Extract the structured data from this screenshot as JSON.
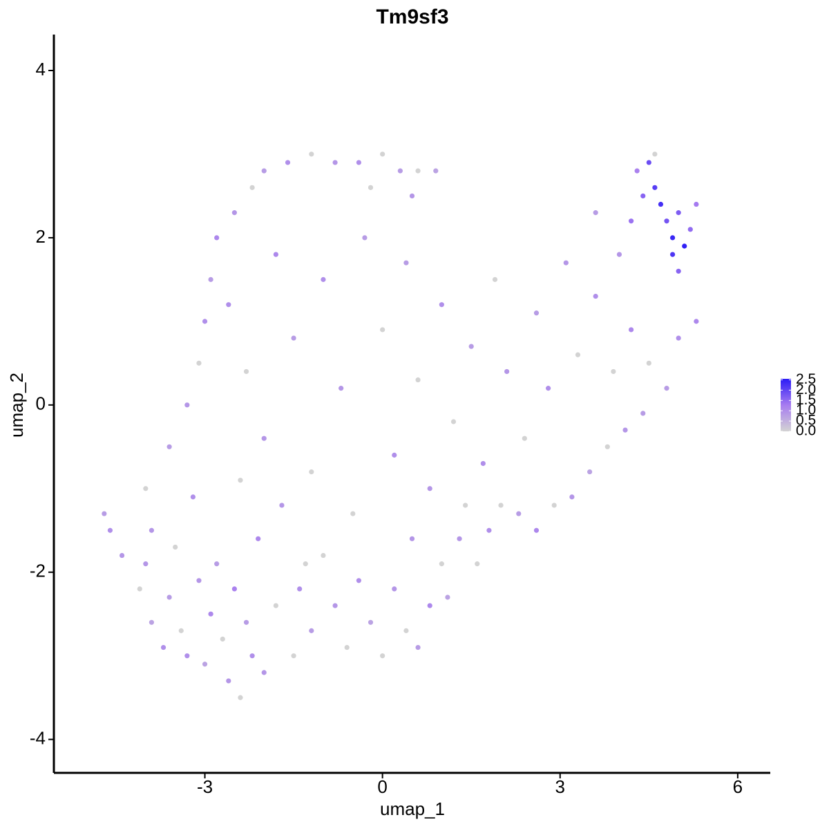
{
  "chart_data": {
    "type": "scatter",
    "title": "Tm9sf3",
    "x_label": "umap_1",
    "y_label": "umap_2",
    "x": [
      -4.7,
      -4.6,
      -4.4,
      -4.1,
      -4.0,
      -3.9,
      -3.7,
      -3.6,
      -3.4,
      -3.3,
      -3.1,
      -3.0,
      -2.9,
      -2.7,
      -2.6,
      -2.5,
      -2.4,
      -2.3,
      -2.2,
      -2.0,
      -1.8,
      -1.5,
      -1.4,
      -1.2,
      -1.0,
      -0.8,
      -0.6,
      -0.4,
      -0.2,
      0,
      0.2,
      0.4,
      0.6,
      0.8,
      1.0,
      1.1,
      1.3,
      1.6,
      1.8,
      2.0,
      2.3,
      2.6,
      2.9,
      3.2,
      3.5,
      3.8,
      4.1,
      4.4,
      -4.0,
      -3.6,
      -3.3,
      -3.1,
      -3.0,
      -2.9,
      -2.8,
      -2.5,
      -2.2,
      -2.0,
      -1.6,
      -1.2,
      -0.8,
      -0.4,
      0,
      0.3,
      0.6,
      0.9,
      0.5,
      -0.2,
      -2.6,
      -2.3,
      -2.0,
      -1.8,
      -1.5,
      -1.2,
      -1.0,
      -0.7,
      -0.5,
      -0.3,
      0,
      0.2,
      0.4,
      0.6,
      0.8,
      1.0,
      1.2,
      1.5,
      1.7,
      1.9,
      2.1,
      2.4,
      2.6,
      2.8,
      3.1,
      3.3,
      3.6,
      3.6,
      3.9,
      4.0,
      4.2,
      4.5,
      4.8,
      5.0,
      5.3,
      -3.9,
      -3.5,
      -3.2,
      -2.8,
      -2.4,
      -2.1,
      -1.7,
      -1.3,
      0.5,
      1.4,
      4.4,
      4.5,
      4.6,
      4.7,
      4.8,
      4.9,
      5.0,
      5.1,
      5.2,
      4.9,
      5.0,
      5.3,
      4.3,
      4.6,
      4.2
    ],
    "values": [
      -1.3,
      -1.5,
      -1.8,
      -2.2,
      -1.9,
      -2.6,
      -2.9,
      -2.3,
      -2.7,
      -3.0,
      -2.1,
      -3.1,
      -2.5,
      -2.8,
      -3.3,
      -2.2,
      -3.5,
      -2.6,
      -3.0,
      -3.2,
      -2.4,
      -3.0,
      -2.2,
      -2.7,
      -1.8,
      -2.4,
      -2.9,
      -2.1,
      -2.6,
      -3.0,
      -2.2,
      -2.7,
      -2.9,
      -2.4,
      -1.9,
      -2.3,
      -1.6,
      -1.9,
      -1.5,
      -1.2,
      -1.3,
      -1.5,
      -1.2,
      -1.1,
      -0.8,
      -0.5,
      -0.3,
      -0.1,
      -1.0,
      -0.5,
      0,
      0.5,
      1.0,
      1.5,
      2.0,
      2.3,
      2.6,
      2.8,
      2.9,
      3.0,
      2.9,
      2.9,
      3.0,
      2.8,
      2.8,
      2.8,
      2.5,
      2.6,
      1.2,
      0.4,
      -0.4,
      1.8,
      0.8,
      -0.8,
      1.5,
      0.2,
      -1.3,
      2.0,
      0.9,
      -0.6,
      1.7,
      0.3,
      -1.0,
      1.2,
      -0.2,
      0.7,
      -0.7,
      1.5,
      0.4,
      -0.4,
      1.1,
      0.2,
      1.7,
      0.6,
      1.3,
      2.3,
      0.4,
      1.8,
      0.9,
      0.5,
      0.2,
      0.8,
      1.0,
      -1.5,
      -1.7,
      -1.1,
      -1.9,
      -0.9,
      -1.6,
      -1.2,
      -1.9,
      -1.6,
      -1.2,
      2.5,
      2.9,
      2.6,
      2.4,
      2.2,
      2.0,
      2.3,
      1.9,
      2.1,
      1.8,
      1.6,
      2.4,
      2.8,
      3.0,
      2.2
    ],
    "expression": [
      0.8,
      1.0,
      0.9,
      0,
      0.9,
      0.7,
      1.0,
      0.8,
      0,
      1.0,
      0.9,
      0.7,
      1.1,
      0,
      0.9,
      1.2,
      0,
      0.8,
      1.0,
      0.9,
      0,
      0,
      1.0,
      0.8,
      0,
      0.9,
      0,
      1.0,
      0.7,
      0,
      0.9,
      0,
      0.8,
      1.1,
      0,
      0.7,
      0.9,
      0,
      1.0,
      0,
      0.8,
      1.1,
      0,
      0.9,
      0.7,
      0,
      0.9,
      0.8,
      0,
      0.8,
      0.9,
      0,
      1.0,
      0.8,
      1.1,
      0.9,
      0,
      0.8,
      1.0,
      0,
      0.9,
      1.0,
      0,
      0.8,
      0,
      0.7,
      0.9,
      0,
      1.0,
      0,
      0.9,
      1.1,
      0.8,
      0,
      1.0,
      0.9,
      0,
      0.8,
      0,
      1.0,
      0.8,
      0,
      0.9,
      1.0,
      0,
      0.8,
      1.0,
      0,
      0.9,
      0,
      0.8,
      1.0,
      0.9,
      0,
      1.0,
      0.8,
      0,
      0.9,
      1.1,
      0,
      0.8,
      1.0,
      1.1,
      0.9,
      0,
      1.0,
      0.8,
      0,
      1.1,
      0.9,
      0,
      0.9,
      0,
      1.6,
      1.9,
      2.1,
      2.3,
      1.8,
      2.4,
      1.7,
      2.5,
      1.5,
      2.2,
      1.6,
      1.3,
      1.2,
      0,
      1.4
    ],
    "xlim": [
      -5.55,
      6.55
    ],
    "ylim": [
      -4.4,
      4.43
    ],
    "xticks": [
      -3,
      0,
      3,
      6
    ],
    "yticks": [
      -4,
      -2,
      0,
      2,
      4
    ],
    "colorscale": [
      "#d3d3d3",
      "#a77cf0",
      "#2c1cf6"
    ],
    "clim": [
      0,
      2.55
    ],
    "cticks": [
      {
        "value": 0,
        "label": "0.0"
      },
      {
        "value": 0.5,
        "label": "0.5"
      },
      {
        "value": 1,
        "label": "1.0"
      },
      {
        "value": 1.5,
        "label": "1.5"
      },
      {
        "value": 2,
        "label": "2.0"
      },
      {
        "value": 2.5,
        "label": "2.5"
      }
    ],
    "grid": false
  }
}
